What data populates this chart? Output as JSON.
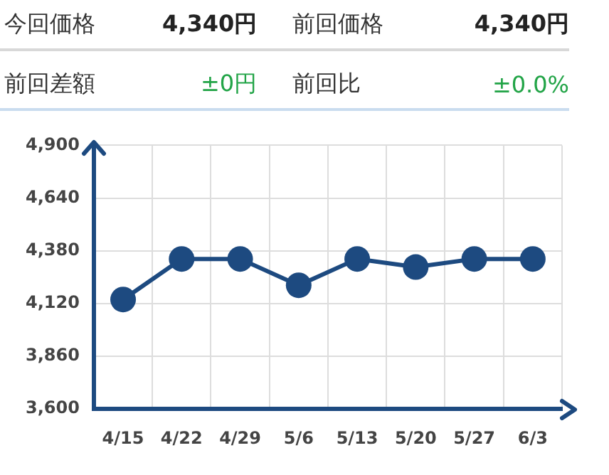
{
  "chart_data": {
    "type": "line",
    "categories": [
      "4/15",
      "4/22",
      "4/29",
      "5/6",
      "5/13",
      "5/20",
      "5/27",
      "6/3"
    ],
    "values": [
      4140,
      4340,
      4340,
      4210,
      4340,
      4300,
      4340,
      4340
    ],
    "color": "#1d4a80",
    "ylim": [
      3600,
      4900
    ],
    "yticks": [
      {
        "value": 3600,
        "label": "3,600"
      },
      {
        "value": 3860,
        "label": "3,860"
      },
      {
        "value": 4120,
        "label": "4,120"
      },
      {
        "value": 4380,
        "label": "4,380"
      },
      {
        "value": 4640,
        "label": "4,640"
      },
      {
        "value": 4900,
        "label": "4,900"
      }
    ],
    "grid": true,
    "marker": "circle",
    "line_style": "solid",
    "annotations": [
      "今回価格",
      "4,340円",
      "前回価格",
      "4,340円",
      "前回差額",
      "±0円",
      "前回比",
      "±0.0%"
    ]
  }
}
